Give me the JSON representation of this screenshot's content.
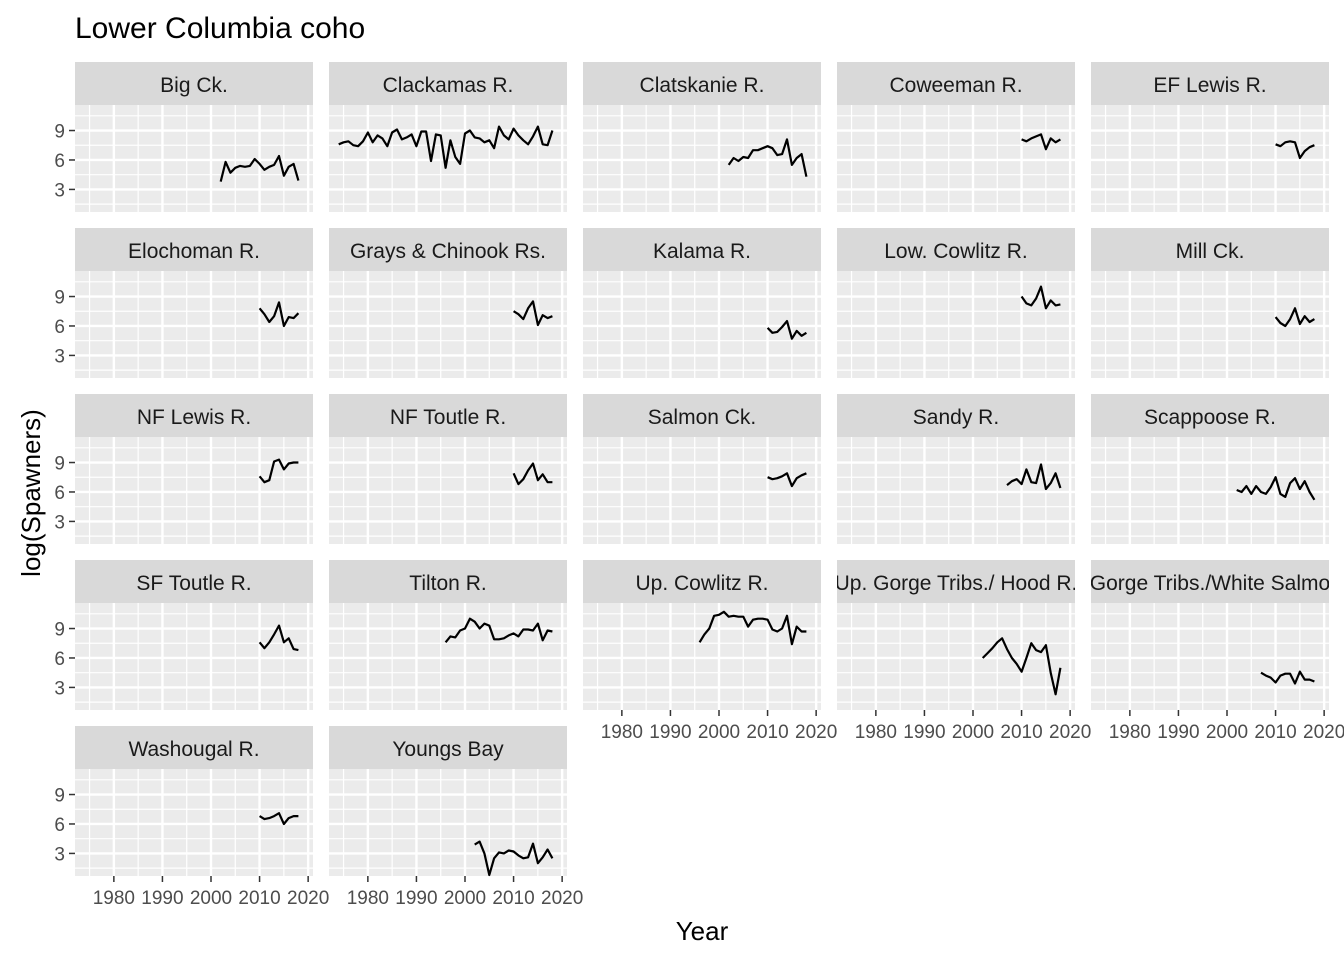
{
  "chart_data": {
    "type": "line",
    "layout": "faceted",
    "title": "Lower Columbia coho",
    "xlabel": "Year",
    "ylabel": "log(Spawners)",
    "xlim": [
      1972,
      2021
    ],
    "ylim": [
      0.7,
      11.6
    ],
    "x_ticks": [
      1980,
      1990,
      2000,
      2010,
      2020
    ],
    "x_tick_labels": [
      "1980",
      "1990",
      "2000",
      "2010",
      "2020"
    ],
    "y_ticks": [
      3,
      6,
      9
    ],
    "y_tick_labels": [
      "3",
      "6",
      "9"
    ],
    "grid": true,
    "line_color": "#000000",
    "panel_background": "#EBEBEB",
    "strip_background": "#D9D9D9",
    "panels": [
      {
        "label": "Big Ck.",
        "x": [
          2002,
          2003,
          2004,
          2005,
          2006,
          2007,
          2008,
          2009,
          2010,
          2011,
          2012,
          2013,
          2014,
          2015,
          2016,
          2017,
          2018
        ],
        "y": [
          3.8,
          5.8,
          4.7,
          5.2,
          5.4,
          5.3,
          5.4,
          6.1,
          5.6,
          5.0,
          5.3,
          5.5,
          6.4,
          4.4,
          5.3,
          5.6,
          3.9
        ]
      },
      {
        "label": "Clackamas R.",
        "x": [
          1974,
          1975,
          1976,
          1977,
          1978,
          1979,
          1980,
          1981,
          1982,
          1983,
          1984,
          1985,
          1986,
          1987,
          1988,
          1989,
          1990,
          1991,
          1992,
          1993,
          1994,
          1995,
          1996,
          1997,
          1998,
          1999,
          2000,
          2001,
          2002,
          2003,
          2004,
          2005,
          2006,
          2007,
          2008,
          2009,
          2010,
          2011,
          2012,
          2013,
          2014,
          2015,
          2016,
          2017,
          2018
        ],
        "y": [
          7.6,
          7.8,
          7.9,
          7.5,
          7.4,
          7.9,
          8.8,
          7.8,
          8.5,
          8.2,
          7.4,
          8.8,
          9.1,
          8.1,
          8.3,
          8.6,
          7.4,
          8.9,
          8.9,
          5.9,
          8.6,
          8.5,
          5.2,
          8.0,
          6.3,
          5.6,
          8.7,
          9.0,
          8.3,
          8.2,
          7.8,
          8.0,
          7.2,
          9.4,
          8.5,
          8.1,
          9.2,
          8.5,
          8.0,
          7.6,
          8.4,
          9.4,
          7.6,
          7.5,
          9.0
        ]
      },
      {
        "label": "Clatskanie R.",
        "x": [
          2002,
          2003,
          2004,
          2005,
          2006,
          2007,
          2008,
          2009,
          2010,
          2011,
          2012,
          2013,
          2014,
          2015,
          2016,
          2017,
          2018
        ],
        "y": [
          5.5,
          6.2,
          5.9,
          6.3,
          6.2,
          7.0,
          7.0,
          7.2,
          7.4,
          7.2,
          6.5,
          6.6,
          8.1,
          5.5,
          6.2,
          6.6,
          4.3
        ]
      },
      {
        "label": "Coweeman R.",
        "x": [
          2010,
          2011,
          2012,
          2013,
          2014,
          2015,
          2016,
          2017,
          2018
        ],
        "y": [
          8.1,
          7.9,
          8.2,
          8.4,
          8.6,
          7.1,
          8.2,
          7.8,
          8.1
        ]
      },
      {
        "label": "EF Lewis R.",
        "x": [
          2010,
          2011,
          2012,
          2013,
          2014,
          2015,
          2016,
          2017,
          2018
        ],
        "y": [
          7.6,
          7.4,
          7.8,
          7.9,
          7.8,
          6.2,
          6.9,
          7.3,
          7.5
        ]
      },
      {
        "label": "Elochoman R.",
        "x": [
          2010,
          2011,
          2012,
          2013,
          2014,
          2015,
          2016,
          2017,
          2018
        ],
        "y": [
          7.8,
          7.2,
          6.4,
          7.0,
          8.4,
          6.0,
          6.9,
          6.8,
          7.3
        ]
      },
      {
        "label": "Grays & Chinook Rs.",
        "x": [
          2010,
          2011,
          2012,
          2013,
          2014,
          2015,
          2016,
          2017,
          2018
        ],
        "y": [
          7.5,
          7.2,
          6.7,
          7.8,
          8.5,
          6.1,
          7.1,
          6.8,
          7.0
        ]
      },
      {
        "label": "Kalama R.",
        "x": [
          2010,
          2011,
          2012,
          2013,
          2014,
          2015,
          2016,
          2017,
          2018
        ],
        "y": [
          5.8,
          5.3,
          5.4,
          5.9,
          6.5,
          4.7,
          5.5,
          5.0,
          5.3
        ]
      },
      {
        "label": "Low. Cowlitz R.",
        "x": [
          2010,
          2011,
          2012,
          2013,
          2014,
          2015,
          2016,
          2017,
          2018
        ],
        "y": [
          9.0,
          8.3,
          8.1,
          8.8,
          10.0,
          7.8,
          8.6,
          8.1,
          8.2
        ]
      },
      {
        "label": "Mill Ck.",
        "x": [
          2010,
          2011,
          2012,
          2013,
          2014,
          2015,
          2016,
          2017,
          2018
        ],
        "y": [
          6.9,
          6.3,
          6.0,
          6.7,
          7.8,
          6.2,
          7.0,
          6.4,
          6.7
        ]
      },
      {
        "label": "NF Lewis R.",
        "x": [
          2010,
          2011,
          2012,
          2013,
          2014,
          2015,
          2016,
          2017,
          2018
        ],
        "y": [
          7.6,
          7.0,
          7.2,
          9.1,
          9.3,
          8.3,
          8.9,
          9.0,
          9.0
        ]
      },
      {
        "label": "NF Toutle R.",
        "x": [
          2010,
          2011,
          2012,
          2013,
          2014,
          2015,
          2016,
          2017,
          2018
        ],
        "y": [
          7.9,
          6.8,
          7.3,
          8.2,
          8.9,
          7.2,
          7.8,
          7.0,
          7.0
        ]
      },
      {
        "label": "Salmon Ck.",
        "x": [
          2010,
          2011,
          2012,
          2013,
          2014,
          2015,
          2016,
          2017,
          2018
        ],
        "y": [
          7.5,
          7.3,
          7.4,
          7.6,
          7.9,
          6.6,
          7.4,
          7.7,
          7.9
        ]
      },
      {
        "label": "Sandy R.",
        "x": [
          2007,
          2008,
          2009,
          2010,
          2011,
          2012,
          2013,
          2014,
          2015,
          2016,
          2017,
          2018
        ],
        "y": [
          6.7,
          7.1,
          7.3,
          6.8,
          8.3,
          7.0,
          6.9,
          8.8,
          6.3,
          6.9,
          7.9,
          6.4
        ]
      },
      {
        "label": "Scappoose R.",
        "x": [
          2002,
          2003,
          2004,
          2005,
          2006,
          2007,
          2008,
          2009,
          2010,
          2011,
          2012,
          2013,
          2014,
          2015,
          2016,
          2017,
          2018
        ],
        "y": [
          6.2,
          6.0,
          6.6,
          5.8,
          6.6,
          6.0,
          5.8,
          6.5,
          7.5,
          5.8,
          5.5,
          6.9,
          7.4,
          6.3,
          7.1,
          6.0,
          5.2
        ]
      },
      {
        "label": "SF Toutle R.",
        "x": [
          2010,
          2011,
          2012,
          2013,
          2014,
          2015,
          2016,
          2017,
          2018
        ],
        "y": [
          7.6,
          7.0,
          7.6,
          8.4,
          9.3,
          7.6,
          8.0,
          6.9,
          6.8
        ]
      },
      {
        "label": "Tilton R.",
        "x": [
          1996,
          1997,
          1998,
          1999,
          2000,
          2001,
          2002,
          2003,
          2004,
          2005,
          2006,
          2007,
          2008,
          2009,
          2010,
          2011,
          2012,
          2013,
          2014,
          2015,
          2016,
          2017,
          2018
        ],
        "y": [
          7.6,
          8.2,
          8.1,
          8.8,
          9.0,
          10.0,
          9.7,
          9.0,
          9.5,
          9.3,
          7.9,
          7.9,
          8.0,
          8.3,
          8.5,
          8.2,
          8.9,
          8.9,
          8.8,
          9.5,
          7.8,
          8.8,
          8.7
        ]
      },
      {
        "label": "Up. Cowlitz R.",
        "x": [
          1996,
          1997,
          1998,
          1999,
          2000,
          2001,
          2002,
          2003,
          2004,
          2005,
          2006,
          2007,
          2008,
          2009,
          2010,
          2011,
          2012,
          2013,
          2014,
          2015,
          2016,
          2017,
          2018
        ],
        "y": [
          7.6,
          8.4,
          9.0,
          10.3,
          10.4,
          10.7,
          10.2,
          10.3,
          10.2,
          10.2,
          9.2,
          9.9,
          10.0,
          10.0,
          9.9,
          8.9,
          8.7,
          9.0,
          10.3,
          7.4,
          9.2,
          8.7,
          8.7
        ]
      },
      {
        "label": "Up. Gorge Tribs./ Hood R.",
        "x": [
          2002,
          2003,
          2004,
          2005,
          2006,
          2007,
          2008,
          2009,
          2010,
          2011,
          2012,
          2013,
          2014,
          2015,
          2016,
          2017,
          2018
        ],
        "y": [
          6.0,
          6.5,
          7.0,
          7.6,
          8.0,
          6.9,
          6.0,
          5.4,
          4.6,
          6.0,
          7.5,
          6.8,
          6.6,
          7.3,
          4.5,
          2.3,
          5.0
        ]
      },
      {
        "label": "Up. Gorge Tribs./White Salmon R.",
        "x": [
          2007,
          2008,
          2009,
          2010,
          2011,
          2012,
          2013,
          2014,
          2015,
          2016,
          2017,
          2018
        ],
        "y": [
          4.5,
          4.2,
          4.0,
          3.5,
          4.2,
          4.4,
          4.4,
          3.4,
          4.6,
          3.8,
          3.8,
          3.6
        ]
      },
      {
        "label": "Washougal R.",
        "x": [
          2010,
          2011,
          2012,
          2013,
          2014,
          2015,
          2016,
          2017,
          2018
        ],
        "y": [
          6.8,
          6.5,
          6.6,
          6.8,
          7.1,
          6.0,
          6.6,
          6.8,
          6.8
        ]
      },
      {
        "label": "Youngs Bay",
        "x": [
          2002,
          2003,
          2004,
          2005,
          2006,
          2007,
          2008,
          2009,
          2010,
          2011,
          2012,
          2013,
          2014,
          2015,
          2016,
          2017,
          2018
        ],
        "y": [
          3.9,
          4.2,
          3.0,
          0.8,
          2.5,
          3.1,
          3.0,
          3.3,
          3.2,
          2.8,
          2.5,
          2.6,
          4.0,
          2.0,
          2.6,
          3.4,
          2.5
        ]
      }
    ]
  }
}
